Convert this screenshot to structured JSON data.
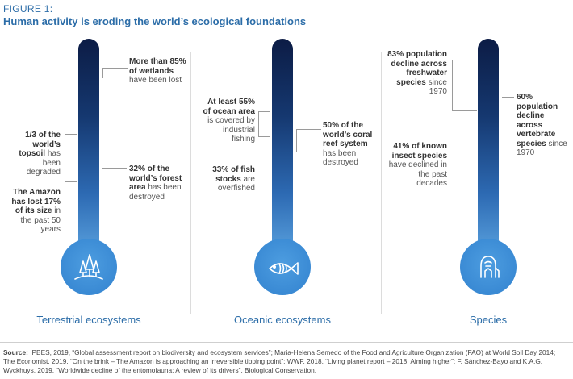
{
  "figure": {
    "label": "FIGURE 1:",
    "title": "Human activity is eroding the world’s ecological foundations"
  },
  "columns": [
    {
      "label": "Terrestrial ecosystems",
      "icon": "trees-icon",
      "annotations": [
        {
          "bold": "More than 85% of wetlands",
          "rest": " have been lost"
        },
        {
          "bold": "1/3 of the world’s topsoil",
          "rest": " has been degraded"
        },
        {
          "bold": "32% of the world’s forest area",
          "rest": " has been destroyed"
        },
        {
          "bold": "The Amazon has lost 17% of its size",
          "rest": " in the past 50 years"
        }
      ]
    },
    {
      "label": "Oceanic ecosystems",
      "icon": "fish-icon",
      "annotations": [
        {
          "bold": "At least 55% of ocean area",
          "rest": " is covered by industrial fishing"
        },
        {
          "bold": "50% of the world’s coral reef system",
          "rest": " has been destroyed"
        },
        {
          "bold": "33% of fish stocks",
          "rest": " are overfished"
        }
      ]
    },
    {
      "label": "Species",
      "icon": "gorilla-icon",
      "annotations": [
        {
          "bold": "83% population decline across freshwater species",
          "rest": " since 1970"
        },
        {
          "bold": "60% population decline across vertebrate species",
          "rest": " since 1970"
        },
        {
          "bold": "41% of known insect species",
          "rest": " have declined in the past decades"
        }
      ]
    }
  ],
  "source": {
    "label": "Source:",
    "text": "IPBES, 2019, “Global assessment report on biodiversity and ecosystem services”; Maria-Helena Semedo of the Food and Agriculture Organization (FAO) at World Soil Day 2014; The Economist, 2019, “On the brink – The Amazon is approaching an irreversible tipping point”; WWF, 2018, “Living planet report – 2018. Aiming higher”; F. Sánchez-Bayo and K.A.G. Wyckhuys, 2019, “Worldwide decline of the entomofauna: A review of its drivers”, Biological Conservation."
  },
  "colors": {
    "accent": "#2c6da8",
    "thermometer_top": "#0c1c45",
    "thermometer_bottom": "#5da6e2",
    "bulb": "#3a8ad4"
  }
}
